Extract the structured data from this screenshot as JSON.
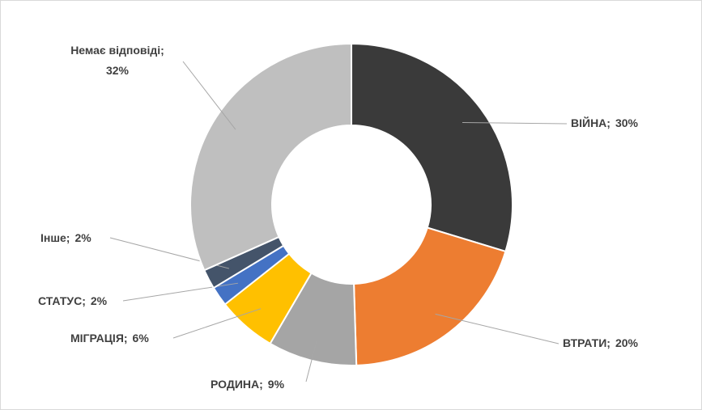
{
  "chart_data": {
    "type": "donut",
    "categories": [
      "ВІЙНА;",
      "ВТРАТИ;",
      "РОДИНА;",
      "МІГРАЦІЯ;",
      "СТАТУС;",
      "Інше;",
      "Немає відповіді;"
    ],
    "values": [
      30,
      20,
      9,
      6,
      2,
      2,
      32
    ],
    "value_labels": [
      "30%",
      "20%",
      "9%",
      "6%",
      "2%",
      "2%",
      "32%"
    ],
    "colors": [
      "#3a3a3a",
      "#ed7d31",
      "#a5a5a5",
      "#ffc000",
      "#4472c4",
      "#44546a",
      "#bfbfbf"
    ]
  }
}
